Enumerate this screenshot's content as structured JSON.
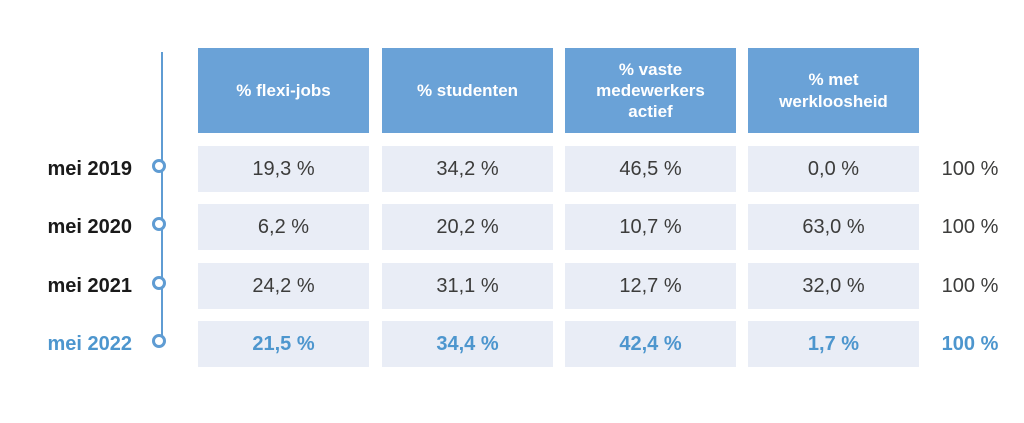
{
  "theme": {
    "header_bg": "#6AA2D7",
    "header_text": "#FFFFFF",
    "cell_bg": "#E9EDF6",
    "cell_text": "#3C3C3B",
    "year_text": "#1A1A1A",
    "accent": "#4D96CE",
    "timeline": "#5F9CD3",
    "background": "#FFFFFF"
  },
  "table": {
    "column_headers": [
      "% flexi-jobs",
      "% studenten",
      "% vaste medewerkers actief",
      "% met werkloosheid"
    ],
    "rows": [
      {
        "year": "mei 2019",
        "values": [
          "19,3 %",
          "34,2 %",
          "46,5 %",
          "0,0 %"
        ],
        "total": "100 %"
      },
      {
        "year": "mei 2020",
        "values": [
          "6,2 %",
          "20,2 %",
          "10,7 %",
          "63,0 %"
        ],
        "total": "100 %"
      },
      {
        "year": "mei 2021",
        "values": [
          "24,2 %",
          "31,1 %",
          "12,7 %",
          "32,0 %"
        ],
        "total": "100 %"
      },
      {
        "year": "mei 2022",
        "values": [
          "21,5 %",
          "34,4 %",
          "42,4 %",
          "1,7 %"
        ],
        "total": "100 %",
        "highlighted": true
      }
    ]
  },
  "chart_data": {
    "type": "table",
    "categories": [
      "mei 2019",
      "mei 2020",
      "mei 2021",
      "mei 2022"
    ],
    "columns": [
      "% flexi-jobs",
      "% studenten",
      "% vaste medewerkers actief",
      "% met werkloosheid"
    ],
    "series": [
      {
        "name": "% flexi-jobs",
        "values": [
          19.3,
          6.2,
          24.2,
          21.5
        ]
      },
      {
        "name": "% studenten",
        "values": [
          34.2,
          20.2,
          31.1,
          34.4
        ]
      },
      {
        "name": "% vaste medewerkers actief",
        "values": [
          46.5,
          10.7,
          12.7,
          42.4
        ]
      },
      {
        "name": "% met werkloosheid",
        "values": [
          0.0,
          63.0,
          32.0,
          1.7
        ]
      }
    ],
    "row_totals": [
      100,
      100,
      100,
      100
    ],
    "value_format": "comma-decimal percent",
    "highlighted_row": "mei 2022"
  }
}
